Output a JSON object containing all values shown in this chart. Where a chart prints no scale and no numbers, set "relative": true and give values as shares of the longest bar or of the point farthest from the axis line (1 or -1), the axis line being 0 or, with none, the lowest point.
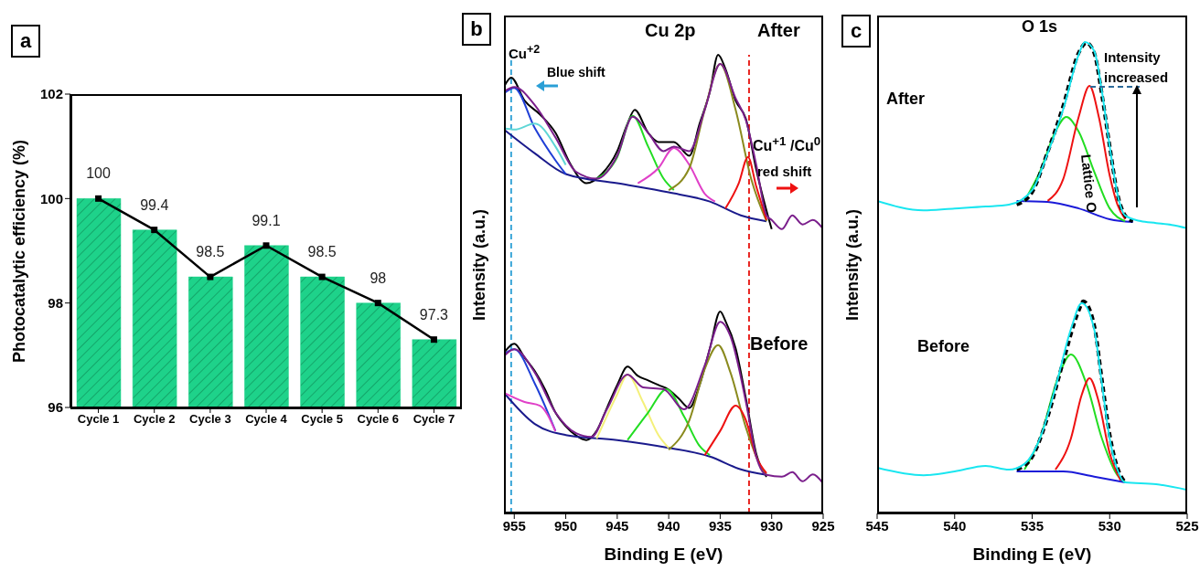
{
  "chart_data": [
    {
      "type": "bar",
      "annotations": [
        "a"
      ],
      "ylabel": "Photocatalytic efficiency (%)",
      "categories": [
        "Cycle 1",
        "Cycle 2",
        "Cycle 3",
        "Cycle 4",
        "Cycle 5",
        "Cycle 6",
        "Cycle 7"
      ],
      "ylim": [
        96,
        102
      ],
      "yticks": [
        96,
        98,
        100,
        102
      ],
      "series": [
        {
          "type": "bar",
          "color": "#1ed28a",
          "values": [
            100,
            99.4,
            98.5,
            99.1,
            98.5,
            98,
            97.3
          ]
        },
        {
          "type": "line",
          "color": "#000000",
          "marker": "square",
          "values": [
            100,
            99.4,
            98.5,
            99.1,
            98.5,
            98,
            97.3
          ],
          "value_labels": [
            "100",
            "99.4",
            "98.5",
            "99.1",
            "98.5",
            "98",
            "97.3"
          ]
        }
      ]
    },
    {
      "type": "line",
      "relative": true,
      "annotations": [
        "b",
        "Cu 2p",
        "After",
        "Cu$^{+2}$",
        "Blue shift",
        "Cu$^{+1}$ /Cu$^{0}$",
        "red shift",
        "Before"
      ],
      "xlabel": "Binding E (eV)",
      "ylabel": "Intensity (a.u.)",
      "xlim": [
        956,
        925
      ],
      "xticks": [
        955,
        950,
        945,
        940,
        935,
        930,
        925
      ],
      "ref_lines": [
        {
          "axis": "x",
          "value": 955.3,
          "color": "#3aa6d8",
          "line_style": "dashed"
        },
        {
          "axis": "x",
          "value": 932.2,
          "color": "#e8231f",
          "line_style": "dashed"
        }
      ],
      "series": [
        {
          "color": "#000000",
          "x": [
            956,
            955.3,
            954,
            952.5,
            951,
            949.5,
            948,
            946.5,
            945,
            944,
            943.3,
            942,
            941,
            939.5,
            938,
            937,
            936,
            935.2,
            934.5,
            933.5,
            932.5,
            931.5,
            930.5,
            930
          ],
          "values": [
            0.93,
            0.95,
            0.9,
            0.87,
            0.83,
            0.76,
            0.72,
            0.74,
            0.79,
            0.85,
            0.88,
            0.83,
            0.81,
            0.81,
            0.78,
            0.85,
            0.92,
            1,
            0.97,
            0.9,
            0.86,
            0.75,
            0.66,
            0.62
          ]
        },
        {
          "color": "#1a1a8c",
          "x": [
            956,
            953,
            950,
            945,
            940,
            936,
            933,
            930.5
          ],
          "values": [
            0.837,
            0.785,
            0.74,
            0.72,
            0.7,
            0.68,
            0.65,
            0.637
          ]
        },
        {
          "color": "#1f3fd6",
          "x": [
            956,
            955,
            953,
            951,
            950
          ],
          "values": [
            0.916,
            0.928,
            0.84,
            0.77,
            0.74
          ]
        },
        {
          "color": "#5fd6d6",
          "x": [
            956,
            955,
            953,
            951,
            950
          ],
          "values": [
            0.84,
            0.837,
            0.85,
            0.8,
            0.76
          ]
        },
        {
          "color": "#22dd22",
          "x": [
            947,
            945,
            943.5,
            942,
            940.5,
            939.5
          ],
          "values": [
            0.73,
            0.777,
            0.867,
            0.8,
            0.73,
            0.705
          ]
        },
        {
          "color": "#e040c8",
          "x": [
            943,
            941,
            939.5,
            938,
            936.5,
            935.5
          ],
          "values": [
            0.72,
            0.753,
            0.797,
            0.76,
            0.697,
            0.68
          ]
        },
        {
          "color": "#8a8a1e",
          "x": [
            940,
            938,
            936.5,
            935,
            933.5,
            932,
            930.5
          ],
          "values": [
            0.705,
            0.753,
            0.88,
            0.98,
            0.88,
            0.73,
            0.637
          ]
        },
        {
          "color": "#ee1111",
          "x": [
            934.5,
            933.2,
            932.3,
            931.5,
            930.5
          ],
          "values": [
            0.665,
            0.72,
            0.777,
            0.713,
            0.64
          ]
        },
        {
          "color": "#7b1f8c",
          "x": [
            956,
            955,
            953,
            951,
            949,
            947,
            945,
            943.5,
            942,
            940.5,
            939.5,
            938,
            936.5,
            935,
            933.5,
            932.5,
            931.5,
            930.5,
            930,
            929,
            928,
            927,
            926,
            925
          ],
          "values": [
            0.92,
            0.93,
            0.89,
            0.82,
            0.745,
            0.73,
            0.78,
            0.865,
            0.83,
            0.79,
            0.8,
            0.79,
            0.88,
            0.98,
            0.905,
            0.857,
            0.76,
            0.65,
            0.64,
            0.62,
            0.65,
            0.63,
            0.64,
            0.62
          ]
        },
        {
          "color": "#000000",
          "x": [
            956,
            955,
            954,
            953,
            952,
            951,
            950,
            949,
            948,
            947,
            946,
            945,
            944,
            943,
            942,
            941,
            940,
            939,
            938,
            937,
            936,
            935,
            934.5,
            933.5,
            932.5,
            931.5,
            930.5
          ],
          "values": [
            0.35,
            0.37,
            0.34,
            0.31,
            0.27,
            0.22,
            0.19,
            0.17,
            0.16,
            0.18,
            0.23,
            0.28,
            0.32,
            0.3,
            0.29,
            0.28,
            0.27,
            0.25,
            0.23,
            0.28,
            0.36,
            0.44,
            0.42,
            0.36,
            0.25,
            0.13,
            0.08
          ]
        },
        {
          "color": "#1a1a8c",
          "x": [
            956,
            953,
            950,
            945,
            940,
            936,
            933,
            930.5
          ],
          "values": [
            0.263,
            0.195,
            0.171,
            0.16,
            0.143,
            0.124,
            0.096,
            0.084
          ]
        },
        {
          "color": "#1f3fd6",
          "x": [
            956,
            955,
            953,
            951
          ],
          "values": [
            0.347,
            0.358,
            0.283,
            0.18
          ]
        },
        {
          "color": "#e040c8",
          "x": [
            956,
            954,
            952.5,
            951
          ],
          "values": [
            0.263,
            0.243,
            0.235,
            0.179
          ]
        },
        {
          "color": "#f4f07a",
          "x": [
            947,
            945,
            944,
            942.5,
            941,
            940
          ],
          "values": [
            0.163,
            0.26,
            0.303,
            0.243,
            0.171,
            0.143
          ]
        },
        {
          "color": "#22dd22",
          "x": [
            944,
            942,
            940.2,
            938.5,
            937,
            936
          ],
          "values": [
            0.16,
            0.22,
            0.271,
            0.211,
            0.147,
            0.127
          ]
        },
        {
          "color": "#8a8a1e",
          "x": [
            940,
            938,
            936.5,
            935.2,
            934,
            932.5,
            931,
            930.5
          ],
          "values": [
            0.139,
            0.203,
            0.315,
            0.367,
            0.307,
            0.187,
            0.1,
            0.084
          ]
        },
        {
          "color": "#ee1111",
          "x": [
            936.5,
            935,
            933.5,
            932.5,
            931.5,
            930.5
          ],
          "values": [
            0.127,
            0.18,
            0.235,
            0.203,
            0.124,
            0.088
          ]
        },
        {
          "color": "#7b1f8c",
          "x": [
            956,
            955,
            953,
            951,
            949,
            947.5,
            946,
            944,
            942.5,
            940.5,
            938.5,
            936.5,
            935,
            934,
            932.5,
            931.5,
            930.5,
            929,
            928,
            927,
            926,
            925
          ],
          "values": [
            0.343,
            0.358,
            0.307,
            0.22,
            0.175,
            0.167,
            0.227,
            0.303,
            0.275,
            0.271,
            0.227,
            0.323,
            0.418,
            0.386,
            0.243,
            0.124,
            0.084,
            0.08,
            0.09,
            0.07,
            0.085,
            0.065
          ]
        }
      ]
    },
    {
      "type": "line",
      "relative": true,
      "annotations": [
        "c",
        "O 1s",
        "Intensity increased",
        "After",
        "Lattice O",
        "Before"
      ],
      "xlabel": "Binding E (eV)",
      "ylabel": "Intensity (a.u.)",
      "xlim": [
        545,
        525
      ],
      "xticks": [
        545,
        540,
        535,
        530,
        525
      ],
      "series": [
        {
          "color": "#1a1ad8",
          "x": [
            536,
            534,
            532,
            530,
            528.5
          ],
          "values": [
            0.663,
            0.661,
            0.647,
            0.624,
            0.618
          ]
        },
        {
          "color": "#22dd22",
          "x": [
            535.5,
            534.5,
            533.5,
            532.8,
            532,
            531,
            530,
            529
          ],
          "values": [
            0.663,
            0.725,
            0.81,
            0.841,
            0.81,
            0.725,
            0.647,
            0.62
          ]
        },
        {
          "color": "#ee1111",
          "x": [
            534,
            533,
            532,
            531.3,
            530.7,
            530,
            529.5,
            529
          ],
          "values": [
            0.663,
            0.709,
            0.841,
            0.907,
            0.841,
            0.717,
            0.655,
            0.624
          ]
        },
        {
          "color": "#000000",
          "line_style": "dashed",
          "x": [
            536,
            535,
            534,
            533,
            532,
            531.5,
            531,
            530.5,
            530,
            529.5,
            529,
            528.5
          ],
          "values": [
            0.655,
            0.682,
            0.767,
            0.864,
            0.977,
            0.998,
            0.977,
            0.888,
            0.779,
            0.678,
            0.632,
            0.62
          ]
        },
        {
          "color": "#19e6f0",
          "x": [
            545,
            542,
            540,
            538,
            536.5,
            535,
            534,
            533,
            532,
            531.6,
            531,
            530.5,
            530,
            529.5,
            529,
            528,
            527,
            526,
            525
          ],
          "values": [
            0.663,
            0.643,
            0.647,
            0.651,
            0.655,
            0.686,
            0.764,
            0.857,
            0.973,
            1,
            0.981,
            0.895,
            0.779,
            0.678,
            0.632,
            0.62,
            0.616,
            0.612,
            0.605
          ]
        },
        {
          "color": "#1a1ad8",
          "x": [
            536,
            533,
            531,
            529
          ],
          "values": [
            0.089,
            0.089,
            0.078,
            0.066
          ]
        },
        {
          "color": "#22dd22",
          "x": [
            535.5,
            534.5,
            533.3,
            532.5,
            531.5,
            530.5,
            529.5,
            529
          ],
          "values": [
            0.093,
            0.159,
            0.291,
            0.337,
            0.275,
            0.159,
            0.081,
            0.066
          ]
        },
        {
          "color": "#ee1111",
          "x": [
            533.5,
            532.5,
            531.8,
            531.3,
            530.7,
            530,
            529.3
          ],
          "values": [
            0.093,
            0.159,
            0.252,
            0.287,
            0.236,
            0.128,
            0.07
          ]
        },
        {
          "color": "#000000",
          "line_style": "dashed",
          "x": [
            536,
            535,
            534,
            533,
            532,
            531.7,
            531,
            530.5,
            530,
            529.5,
            529
          ],
          "values": [
            0.093,
            0.12,
            0.205,
            0.322,
            0.43,
            0.45,
            0.399,
            0.283,
            0.167,
            0.097,
            0.066
          ]
        },
        {
          "color": "#19e6f0",
          "x": [
            545,
            542,
            540,
            538,
            536.5,
            535.5,
            534.5,
            533.5,
            532.5,
            531.8,
            531,
            530.5,
            530,
            529.5,
            529,
            527,
            525
          ],
          "values": [
            0.097,
            0.081,
            0.089,
            0.101,
            0.093,
            0.105,
            0.159,
            0.267,
            0.391,
            0.446,
            0.391,
            0.275,
            0.159,
            0.093,
            0.066,
            0.062,
            0.05
          ]
        }
      ]
    }
  ]
}
